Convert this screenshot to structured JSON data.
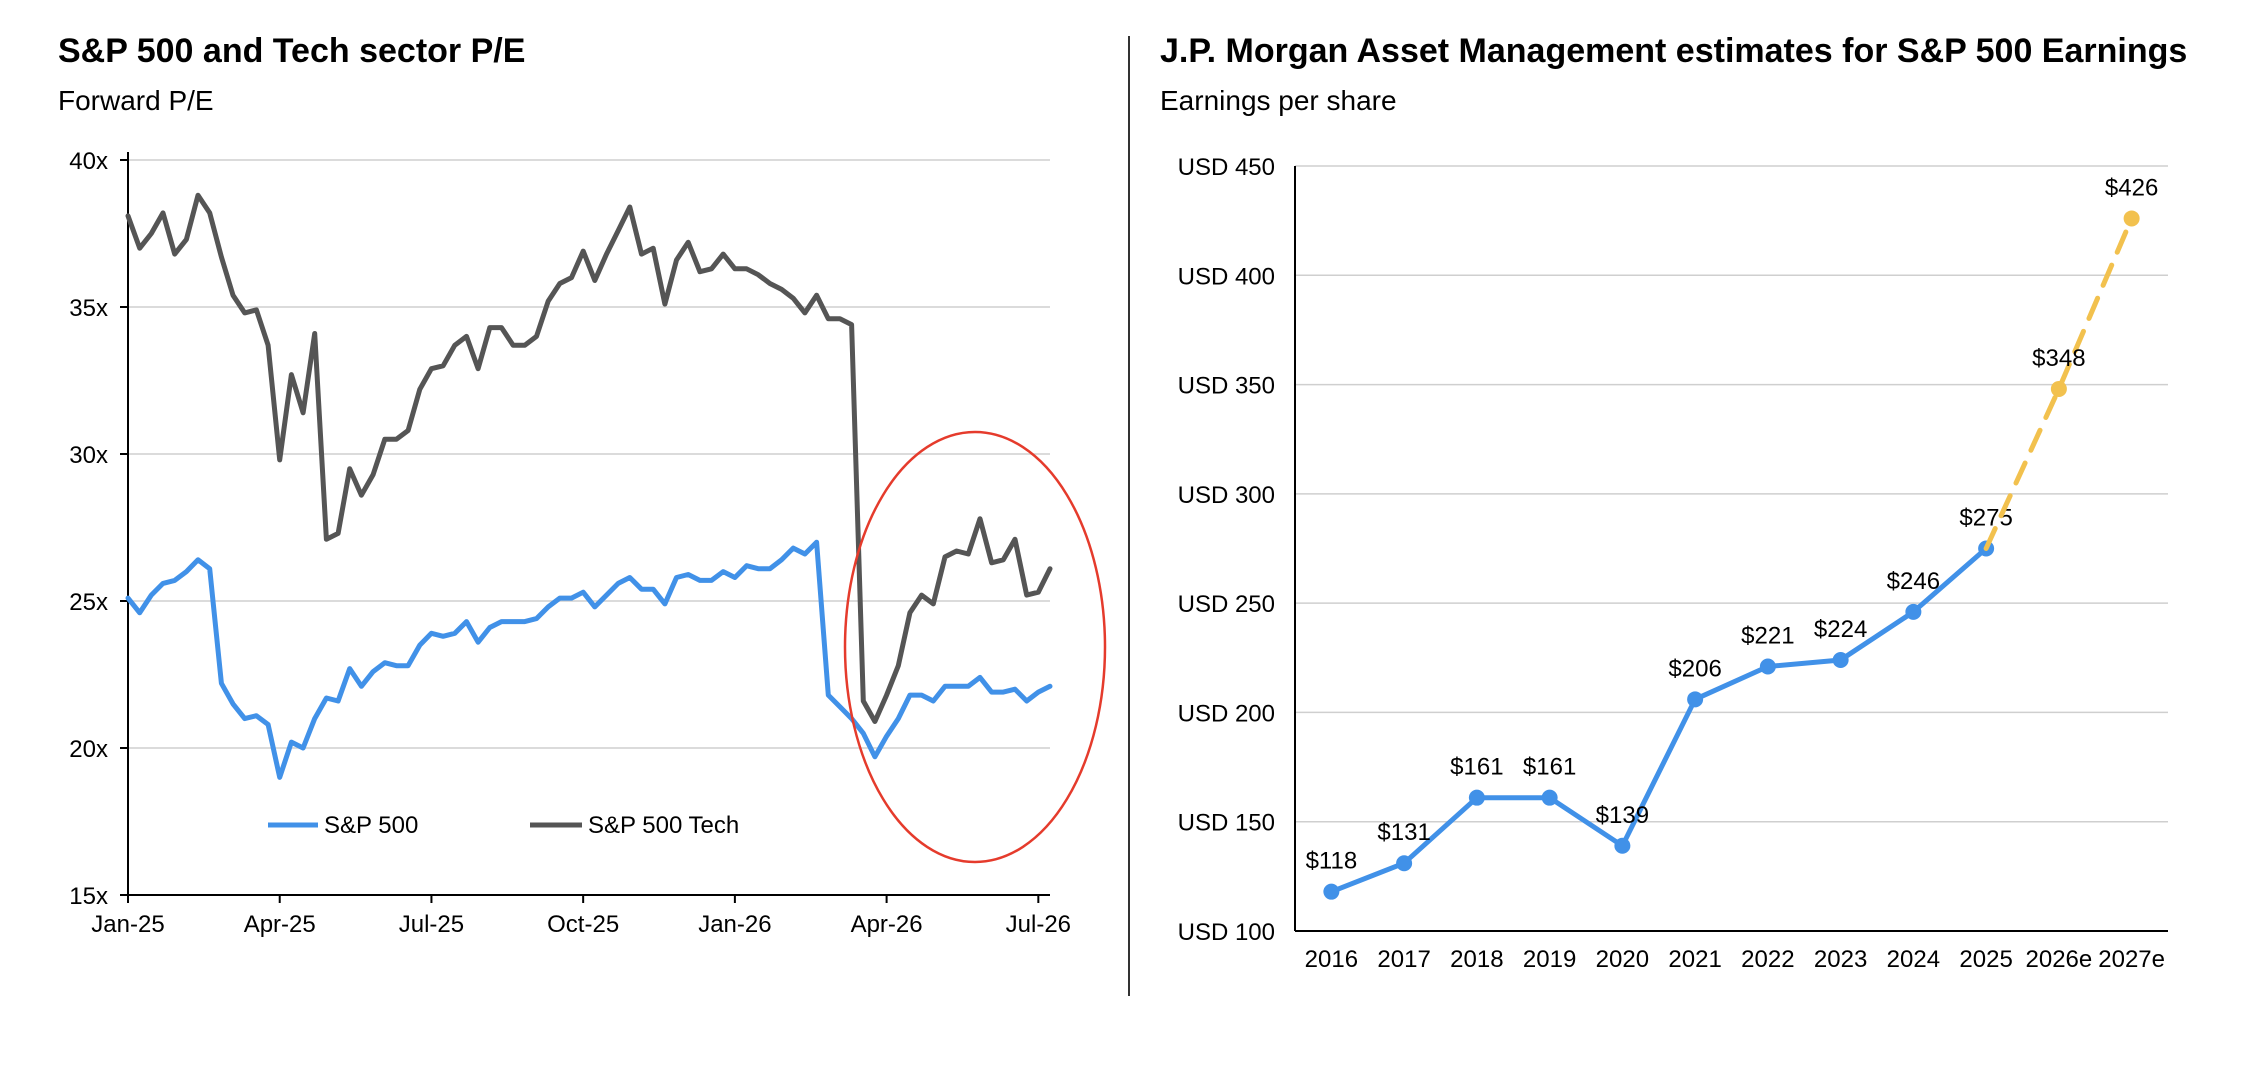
{
  "chart_data": [
    {
      "type": "line",
      "title": "S&P 500 and Tech sector P/E",
      "subtitle": "Forward P/E",
      "ylim": [
        15,
        40
      ],
      "y_ticks": [
        "15x",
        "20x",
        "25x",
        "30x",
        "35x",
        "40x"
      ],
      "x_ticks": [
        "Jan-25",
        "Apr-25",
        "Jul-25",
        "Oct-25",
        "Jan-26",
        "Apr-26",
        "Jul-26"
      ],
      "x_range": [
        0,
        79
      ],
      "x_tick_positions": [
        0,
        13,
        26,
        39,
        52,
        65,
        78
      ],
      "grid": true,
      "legend": "bottom-left",
      "series": [
        {
          "name": "S&P 500",
          "color": "#4191E8",
          "values": [
            25.1,
            24.6,
            25.2,
            25.6,
            25.7,
            26.0,
            26.4,
            26.1,
            22.2,
            21.5,
            21.0,
            21.1,
            20.8,
            19.0,
            20.2,
            20.0,
            21.0,
            21.7,
            21.6,
            22.7,
            22.1,
            22.6,
            22.9,
            22.8,
            22.8,
            23.5,
            23.9,
            23.8,
            23.9,
            24.3,
            23.6,
            24.1,
            24.3,
            24.3,
            24.3,
            24.4,
            24.8,
            25.1,
            25.1,
            25.3,
            24.8,
            25.2,
            25.6,
            25.8,
            25.4,
            25.4,
            24.9,
            25.8,
            25.9,
            25.7,
            25.7,
            26.0,
            25.8,
            26.2,
            26.1,
            26.1,
            26.4,
            26.8,
            26.6,
            27.0,
            21.8,
            21.4,
            21.0,
            20.5,
            19.7,
            20.4,
            21.0,
            21.8,
            21.8,
            21.6,
            22.1,
            22.1,
            22.1,
            22.4,
            21.9,
            21.9,
            22.0,
            21.6,
            21.9,
            22.1
          ]
        },
        {
          "name": "S&P 500 Tech",
          "color": "#555555",
          "values": [
            38.1,
            37.0,
            37.5,
            38.2,
            36.8,
            37.3,
            38.8,
            38.2,
            36.7,
            35.4,
            34.8,
            34.9,
            33.7,
            29.8,
            32.7,
            31.4,
            34.1,
            27.1,
            27.3,
            29.5,
            28.6,
            29.3,
            30.5,
            30.5,
            30.8,
            32.2,
            32.9,
            33.0,
            33.7,
            34.0,
            32.9,
            34.3,
            34.3,
            33.7,
            33.7,
            34.0,
            35.2,
            35.8,
            36.0,
            36.9,
            35.9,
            36.8,
            37.6,
            38.4,
            36.8,
            37.0,
            35.1,
            36.6,
            37.2,
            36.2,
            36.3,
            36.8,
            36.3,
            36.3,
            36.1,
            35.8,
            35.6,
            35.3,
            34.8,
            35.4,
            34.6,
            34.6,
            34.4,
            21.6,
            20.9,
            21.8,
            22.8,
            24.6,
            25.2,
            24.9,
            26.5,
            26.7,
            26.6,
            27.8,
            26.3,
            26.4,
            27.1,
            25.2,
            25.3,
            26.1
          ]
        }
      ],
      "annotation": {
        "type": "ellipse",
        "color": "#E53B2C"
      }
    },
    {
      "type": "line",
      "title": "J.P. Morgan Asset Management estimates for S&P 500 Earnings",
      "subtitle": "Earnings per share",
      "ylim": [
        100,
        450
      ],
      "y_ticks": [
        "USD 100",
        "USD 150",
        "USD 200",
        "USD 250",
        "USD 300",
        "USD 350",
        "USD 400",
        "USD 450"
      ],
      "categories": [
        "2016",
        "2017",
        "2018",
        "2019",
        "2020",
        "2021",
        "2022",
        "2023",
        "2024",
        "2025",
        "2026e",
        "2027e"
      ],
      "grid": true,
      "series": [
        {
          "name": "",
          "color": "#4191E8",
          "values": [
            118,
            131,
            161,
            161,
            139,
            206,
            221,
            224,
            246,
            275,
            null,
            null
          ],
          "labels": [
            "$118",
            "$131",
            "$161",
            "$161",
            "$139",
            "$206",
            "$221",
            "$224",
            "$246",
            "$275",
            "",
            ""
          ]
        },
        {
          "name": "",
          "color": "#F2C14E",
          "style": "dashed",
          "values": [
            null,
            null,
            null,
            null,
            null,
            null,
            null,
            null,
            null,
            275,
            348,
            426
          ],
          "labels": [
            "",
            "",
            "",
            "",
            "",
            "",
            "",
            "",
            "",
            "",
            "$348",
            "$426"
          ]
        }
      ]
    }
  ]
}
